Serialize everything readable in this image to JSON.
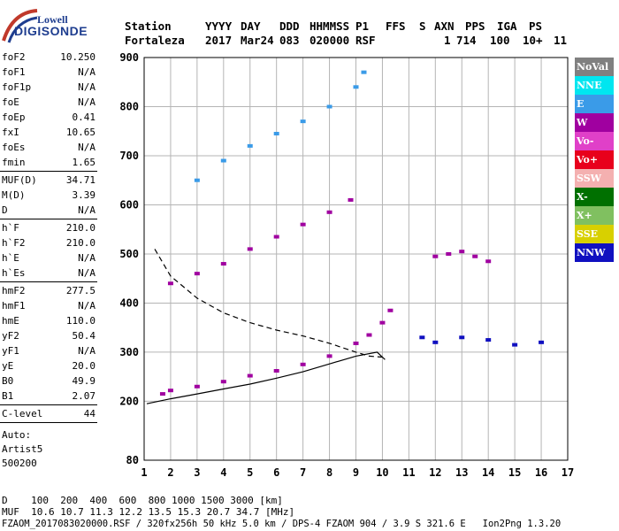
{
  "logo": {
    "line1": "Lowell",
    "line2": "DIGISONDE"
  },
  "header": {
    "labels": [
      "Station",
      "YYYY",
      "DAY",
      "DDD",
      "HHMMSS",
      "P1",
      "FFS",
      "S",
      "AXN",
      "PPS",
      "IGA",
      "PS"
    ],
    "values": [
      "Fortaleza",
      "2017",
      "Mar24",
      "083",
      "020000",
      "RSF",
      "1",
      "714",
      "100",
      "10+",
      "11"
    ]
  },
  "params": [
    {
      "name": "foF2",
      "value": "10.250"
    },
    {
      "name": "foF1",
      "value": "N/A"
    },
    {
      "name": "foF1p",
      "value": "N/A"
    },
    {
      "name": "foE",
      "value": "N/A"
    },
    {
      "name": "foEp",
      "value": "0.41"
    },
    {
      "name": "fxI",
      "value": "10.65"
    },
    {
      "name": "foEs",
      "value": "N/A"
    },
    {
      "name": "fmin",
      "value": "1.65"
    },
    {
      "name": "MUF(D)",
      "value": "34.71"
    },
    {
      "name": "M(D)",
      "value": "3.39"
    },
    {
      "name": "D",
      "value": "N/A"
    },
    {
      "name": "h`F",
      "value": "210.0"
    },
    {
      "name": "h`F2",
      "value": "210.0"
    },
    {
      "name": "h`E",
      "value": "N/A"
    },
    {
      "name": "h`Es",
      "value": "N/A"
    },
    {
      "name": "hmF2",
      "value": "277.5"
    },
    {
      "name": "hmF1",
      "value": "N/A"
    },
    {
      "name": "hmE",
      "value": "110.0"
    },
    {
      "name": "yF2",
      "value": "50.4"
    },
    {
      "name": "yF1",
      "value": "N/A"
    },
    {
      "name": "yE",
      "value": "20.0"
    },
    {
      "name": "B0",
      "value": "49.9"
    },
    {
      "name": "B1",
      "value": "2.07"
    },
    {
      "name": "C-level",
      "value": "44"
    }
  ],
  "autoscaling": [
    "Auto:",
    "Artist5",
    "500200"
  ],
  "legend": [
    {
      "label": "NoVal",
      "color": "#808080"
    },
    {
      "label": "NNE",
      "color": "#00e6f0"
    },
    {
      "label": "E",
      "color": "#3a9be8"
    },
    {
      "label": "W",
      "color": "#a000a0"
    },
    {
      "label": "Vo-",
      "color": "#e040c8"
    },
    {
      "label": "Vo+",
      "color": "#e8001c"
    },
    {
      "label": "SSW",
      "color": "#f4b0b0"
    },
    {
      "label": "X-",
      "color": "#007000"
    },
    {
      "label": "X+",
      "color": "#80c060"
    },
    {
      "label": "SSE",
      "color": "#d8d000"
    },
    {
      "label": "NNW",
      "color": "#1010c0"
    }
  ],
  "footer": {
    "d_row": "D    100  200  400  600  800 1000 1500 3000 [km]",
    "muf_row": "MUF  10.6 10.7 11.3 12.2 13.5 15.3 20.7 34.7 [MHz]",
    "info_row": "FZAOM_2017083020000.RSF / 320fx256h 50 kHz 5.0 km / DPS-4 FZAOM 904 / 3.9 S 321.6 E   Ion2Png 1.3.20"
  },
  "chart_data": {
    "type": "scatter",
    "title": "",
    "xlabel": "",
    "ylabel": "",
    "xlim": [
      1,
      17
    ],
    "ylim": [
      80,
      900
    ],
    "x_ticks": [
      1,
      2,
      3,
      4,
      5,
      6,
      7,
      8,
      9,
      10,
      11,
      12,
      13,
      14,
      15,
      16,
      17
    ],
    "y_ticks": [
      80,
      200,
      300,
      400,
      500,
      600,
      700,
      800,
      900
    ],
    "grid": true,
    "legend_position": "right",
    "series": [
      {
        "color": "#a000a0",
        "points": [
          [
            1.7,
            215
          ],
          [
            2,
            222
          ],
          [
            3,
            230
          ],
          [
            4,
            240
          ],
          [
            5,
            252
          ],
          [
            6,
            262
          ],
          [
            7,
            275
          ],
          [
            8,
            292
          ],
          [
            9,
            318
          ],
          [
            9.5,
            335
          ],
          [
            10,
            360
          ],
          [
            10.3,
            385
          ]
        ]
      },
      {
        "color": "#a000a0",
        "points": [
          [
            2,
            440
          ],
          [
            3,
            460
          ],
          [
            4,
            480
          ],
          [
            5,
            510
          ],
          [
            6,
            535
          ],
          [
            7,
            560
          ],
          [
            8,
            585
          ],
          [
            8.8,
            610
          ]
        ]
      },
      {
        "color": "#3a9be8",
        "points": [
          [
            3,
            650
          ],
          [
            4,
            690
          ],
          [
            5,
            720
          ],
          [
            6,
            745
          ],
          [
            7,
            770
          ],
          [
            8,
            800
          ],
          [
            9,
            840
          ],
          [
            9.3,
            870
          ]
        ]
      },
      {
        "color": "#1010c0",
        "points": [
          [
            11.5,
            330
          ],
          [
            12,
            320
          ],
          [
            13,
            330
          ],
          [
            14,
            325
          ],
          [
            15,
            315
          ],
          [
            16,
            320
          ]
        ]
      },
      {
        "color": "#a000a0",
        "points": [
          [
            12,
            495
          ],
          [
            12.5,
            500
          ],
          [
            13,
            505
          ],
          [
            13.5,
            495
          ],
          [
            14,
            485
          ]
        ]
      }
    ],
    "curves": [
      {
        "style": "solid",
        "color": "#000000",
        "points": [
          [
            1.1,
            195
          ],
          [
            2,
            205
          ],
          [
            3,
            215
          ],
          [
            4,
            225
          ],
          [
            5,
            235
          ],
          [
            6,
            247
          ],
          [
            7,
            260
          ],
          [
            8,
            276
          ],
          [
            9,
            292
          ],
          [
            9.8,
            300
          ],
          [
            10.1,
            285
          ]
        ]
      },
      {
        "style": "dashed",
        "color": "#000000",
        "points": [
          [
            1.4,
            510
          ],
          [
            2,
            455
          ],
          [
            3,
            410
          ],
          [
            4,
            380
          ],
          [
            5,
            360
          ],
          [
            6,
            345
          ],
          [
            7,
            333
          ],
          [
            8,
            318
          ],
          [
            9,
            300
          ],
          [
            9.5,
            292
          ],
          [
            10,
            290
          ]
        ]
      }
    ]
  }
}
